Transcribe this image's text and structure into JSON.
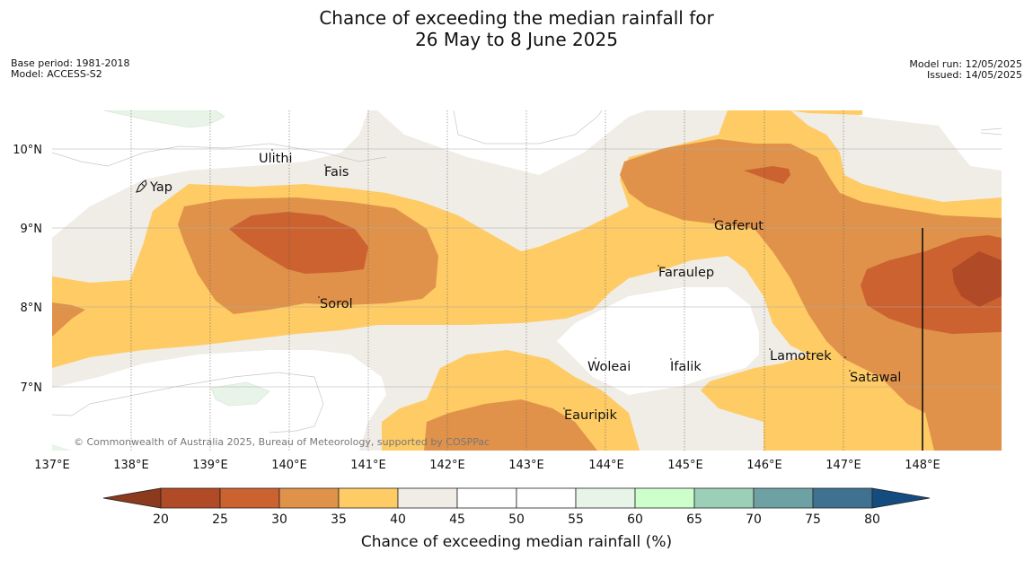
{
  "title": {
    "line1": "Chance of exceeding the median rainfall for",
    "line2": "26 May to 8 June 2025"
  },
  "meta": {
    "base_period": "Base period: 1981-2018",
    "model": "Model: ACCESS-S2",
    "model_run": "Model run: 12/05/2025",
    "issued": "Issued: 14/05/2025"
  },
  "map": {
    "lon_labels": [
      "137°E",
      "138°E",
      "139°E",
      "140°E",
      "141°E",
      "142°E",
      "143°E",
      "144°E",
      "145°E",
      "146°E",
      "147°E",
      "148°E"
    ],
    "lat_labels": [
      "10°N",
      "9°N",
      "8°N",
      "7°N"
    ],
    "places": [
      {
        "name": "Ulithi"
      },
      {
        "name": "Fais"
      },
      {
        "name": "Yap"
      },
      {
        "name": "Gaferut"
      },
      {
        "name": "Faraulep"
      },
      {
        "name": "Sorol"
      },
      {
        "name": "Lamotrek"
      },
      {
        "name": "Woleai"
      },
      {
        "name": "Ifalik"
      },
      {
        "name": "Satawal"
      },
      {
        "name": "Eauripik"
      }
    ],
    "copyright": "© Commonwealth of Australia 2025, Bureau of Meteorology, supported by COSPPac"
  },
  "colorbar": {
    "title": "Chance of exceeding median rainfall (%)",
    "ticks": [
      "20",
      "25",
      "30",
      "35",
      "40",
      "45",
      "50",
      "55",
      "60",
      "65",
      "70",
      "75",
      "80"
    ],
    "colors": {
      "under": "#8c3a1e",
      "c20_25": "#b14a26",
      "c25_30": "#cc6230",
      "c30_35": "#e0924a",
      "c35_40": "#fecb65",
      "c40_45": "#f0ece6",
      "c45_50": "#ffffff",
      "c50_55": "#ffffff",
      "c55_60": "#e8f4e8",
      "c60_65": "#ccffcc",
      "c65_70": "#9ccfb8",
      "c70_75": "#6ea1a4",
      "c75_80": "#3f7190",
      "over": "#154c80"
    }
  }
}
